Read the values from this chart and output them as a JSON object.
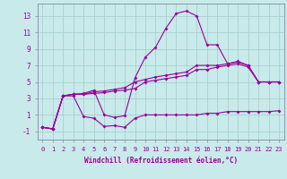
{
  "xlabel": "Windchill (Refroidissement éolien,°C)",
  "background_color": "#c8eaea",
  "grid_color": "#a8d0d0",
  "line_color": "#990099",
  "xlim_min": -0.5,
  "xlim_max": 23.5,
  "ylim_min": -2.0,
  "ylim_max": 14.5,
  "xticks": [
    0,
    1,
    2,
    3,
    4,
    5,
    6,
    7,
    8,
    9,
    10,
    11,
    12,
    13,
    14,
    15,
    16,
    17,
    18,
    19,
    20,
    21,
    22,
    23
  ],
  "yticks": [
    -1,
    1,
    3,
    5,
    7,
    9,
    11,
    13
  ],
  "line_flat_x": [
    0,
    1,
    2,
    3,
    4,
    5,
    6,
    7,
    8,
    9,
    10,
    11,
    12,
    13,
    14,
    15,
    16,
    17,
    18,
    19,
    20,
    21,
    22,
    23
  ],
  "line_flat_y": [
    -0.5,
    -0.7,
    3.3,
    3.3,
    0.8,
    0.6,
    -0.4,
    -0.3,
    -0.5,
    0.6,
    1.0,
    1.0,
    1.0,
    1.0,
    1.0,
    1.0,
    1.2,
    1.2,
    1.4,
    1.4,
    1.4,
    1.4,
    1.4,
    1.5
  ],
  "line_low_x": [
    0,
    1,
    2,
    3,
    4,
    5,
    6,
    7,
    8,
    9,
    10,
    11,
    12,
    13,
    14,
    15,
    16,
    17,
    18,
    19,
    20,
    21,
    22,
    23
  ],
  "line_low_y": [
    -0.5,
    -0.7,
    3.3,
    3.5,
    3.5,
    3.6,
    3.7,
    3.9,
    4.0,
    4.2,
    5.0,
    5.2,
    5.4,
    5.6,
    5.8,
    6.5,
    6.5,
    6.8,
    7.0,
    7.2,
    6.8,
    5.0,
    5.0,
    5.0
  ],
  "line_mid_x": [
    0,
    1,
    2,
    3,
    4,
    5,
    6,
    7,
    8,
    9,
    10,
    11,
    12,
    13,
    14,
    15,
    16,
    17,
    18,
    19,
    20,
    21,
    22,
    23
  ],
  "line_mid_y": [
    -0.5,
    -0.7,
    3.3,
    3.5,
    3.5,
    3.8,
    3.9,
    4.1,
    4.3,
    5.0,
    5.3,
    5.6,
    5.8,
    6.0,
    6.2,
    7.0,
    7.0,
    7.0,
    7.2,
    7.4,
    7.0,
    5.0,
    5.0,
    5.0
  ],
  "line_top_x": [
    0,
    1,
    2,
    3,
    4,
    5,
    6,
    7,
    8,
    9,
    10,
    11,
    12,
    13,
    14,
    15,
    16,
    17,
    18,
    19,
    20,
    21,
    22,
    23
  ],
  "line_top_y": [
    -0.5,
    -0.7,
    3.3,
    3.5,
    3.6,
    4.0,
    1.0,
    0.7,
    0.9,
    5.5,
    8.0,
    9.2,
    11.5,
    13.3,
    13.6,
    13.0,
    9.5,
    9.5,
    7.2,
    7.5,
    7.0,
    5.0,
    5.0,
    5.0
  ],
  "marker_size": 2.0,
  "linewidth": 0.8,
  "tick_fontsize": 5.0,
  "xlabel_fontsize": 5.5
}
